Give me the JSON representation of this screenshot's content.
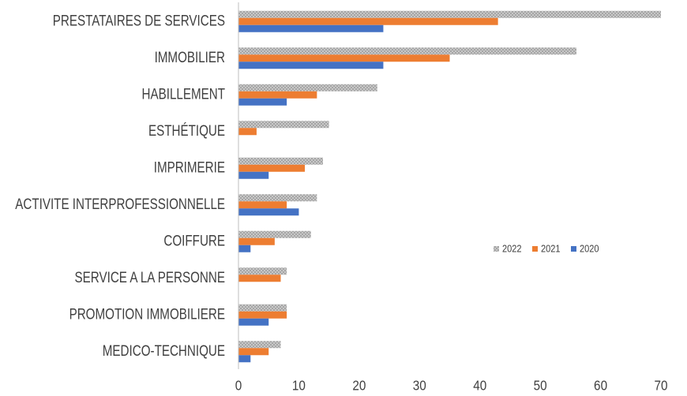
{
  "chart_data": {
    "type": "hbar",
    "categories": [
      "PRESTATAIRES DE SERVICES",
      "IMMOBILIER",
      "HABILLEMENT",
      "ESTHÉTIQUE",
      "IMPRIMERIE",
      "ACTIVITE INTERPROFESSIONNELLE",
      "COIFFURE",
      "SERVICE A LA PERSONNE",
      "PROMOTION IMMOBILIERE",
      "MEDICO-TECHNIQUE"
    ],
    "series": [
      {
        "name": "2022",
        "color": "#a5a5a5",
        "values": [
          70,
          56,
          23,
          15,
          14,
          13,
          12,
          8,
          8,
          7
        ]
      },
      {
        "name": "2021",
        "color": "#ed7d31",
        "values": [
          43,
          35,
          13,
          3,
          11,
          8,
          6,
          7,
          8,
          5
        ]
      },
      {
        "name": "2020",
        "color": "#4472c4",
        "values": [
          24,
          24,
          8,
          0,
          5,
          10,
          2,
          0,
          5,
          2
        ]
      }
    ],
    "xlim": [
      0,
      70
    ],
    "xticks": [
      0,
      10,
      20,
      30,
      40,
      50,
      60,
      70
    ],
    "hatched_series": "2022",
    "legend": "right"
  }
}
